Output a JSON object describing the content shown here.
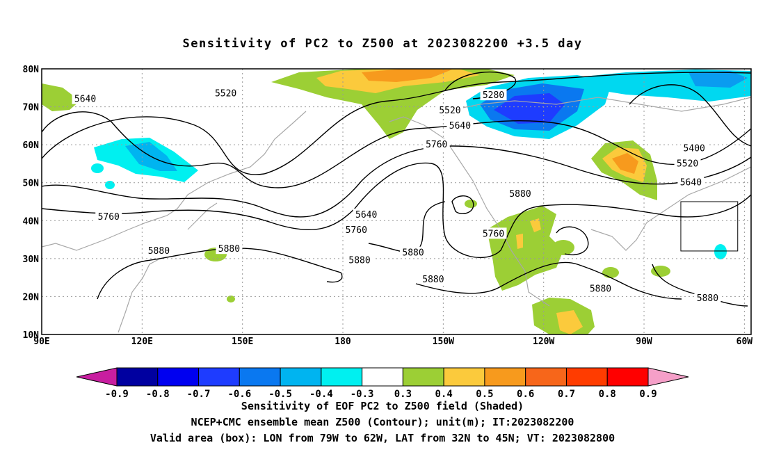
{
  "title": "Sensitivity of PC2 to Z500 at 2023082200 +3.5 day",
  "map": {
    "lat_labels": [
      "80N",
      "70N",
      "60N",
      "50N",
      "40N",
      "30N",
      "20N",
      "10N"
    ],
    "lon_labels": [
      "90E",
      "120E",
      "150E",
      "180",
      "150W",
      "120W",
      "90W",
      "60W"
    ],
    "grid": true,
    "extent": {
      "lon_min": 90,
      "lon_max": 302,
      "lat_min": 10,
      "lat_max": 80
    },
    "valid_box": {
      "lon_west": 281,
      "lon_east": 298,
      "lat_south": 32,
      "lat_north": 45
    },
    "contour_labels": [
      {
        "text": "5640",
        "lon": 103,
        "lat": 72
      },
      {
        "text": "5520",
        "lon": 145,
        "lat": 73.5
      },
      {
        "text": "5280",
        "lon": 225,
        "lat": 73
      },
      {
        "text": "5520",
        "lon": 212,
        "lat": 69
      },
      {
        "text": "5640",
        "lon": 215,
        "lat": 65
      },
      {
        "text": "5760",
        "lon": 208,
        "lat": 60
      },
      {
        "text": "5400",
        "lon": 285,
        "lat": 59
      },
      {
        "text": "5520",
        "lon": 283,
        "lat": 55
      },
      {
        "text": "5640",
        "lon": 284,
        "lat": 50
      },
      {
        "text": "5760",
        "lon": 110,
        "lat": 41
      },
      {
        "text": "5640",
        "lon": 187,
        "lat": 41.5
      },
      {
        "text": "5760",
        "lon": 184,
        "lat": 37.5
      },
      {
        "text": "5760",
        "lon": 225,
        "lat": 36.5
      },
      {
        "text": "5880",
        "lon": 233,
        "lat": 47
      },
      {
        "text": "5880",
        "lon": 125,
        "lat": 32
      },
      {
        "text": "5880",
        "lon": 146,
        "lat": 32.5
      },
      {
        "text": "5880",
        "lon": 185,
        "lat": 29.5
      },
      {
        "text": "5880",
        "lon": 201,
        "lat": 31.5
      },
      {
        "text": "5880",
        "lon": 207,
        "lat": 24.5
      },
      {
        "text": "5880",
        "lon": 257,
        "lat": 22
      },
      {
        "text": "5880",
        "lon": 289,
        "lat": 19.5
      }
    ]
  },
  "colorbar": {
    "labels": [
      "-0.9",
      "-0.8",
      "-0.7",
      "-0.6",
      "-0.5",
      "-0.4",
      "-0.3",
      "0.3",
      "0.4",
      "0.5",
      "0.6",
      "0.7",
      "0.8",
      "0.9"
    ],
    "colors": [
      "#0000a0",
      "#0000f0",
      "#1e3cff",
      "#0a78f0",
      "#00b4f0",
      "#00f0f0",
      "#ffffff",
      "#9ccf35",
      "#fbca3c",
      "#f79a1d",
      "#f7661a",
      "#ff3c00",
      "#ff0000"
    ],
    "low_end_color": "#c81ea0",
    "high_end_color": "#f59fc8"
  },
  "captions": [
    "Sensitivity of EOF PC2 to Z500 field (Shaded)",
    "NCEP+CMC ensemble mean Z500 (Contour); unit(m); IT:2023082200",
    "Valid area (box): LON from 79W to 62W, LAT from 32N to 45N; VT: 2023082800"
  ]
}
